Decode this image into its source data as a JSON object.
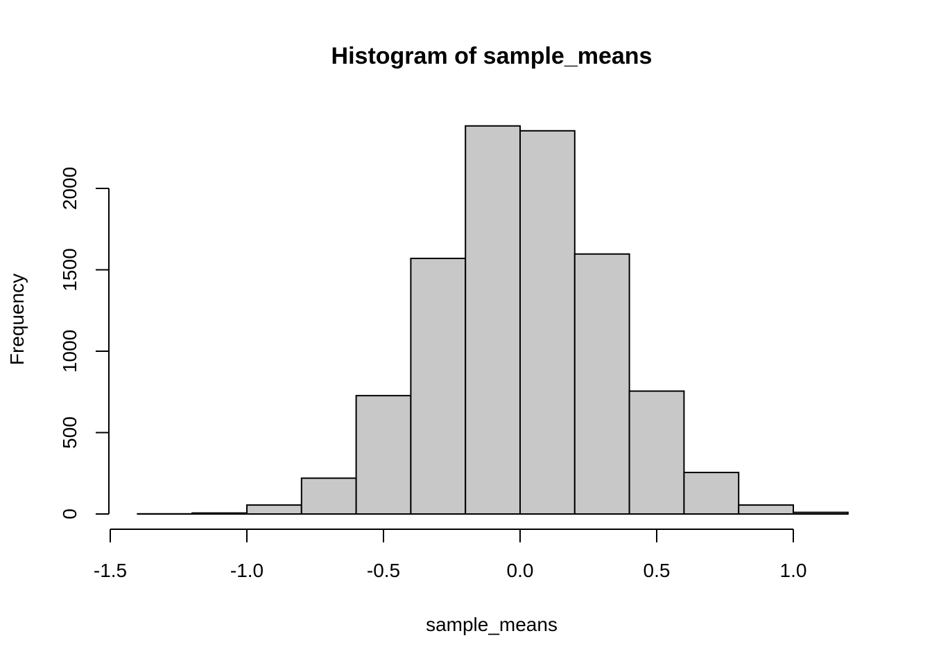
{
  "chart_data": {
    "type": "bar",
    "title": "Histogram of sample_means",
    "xlabel": "sample_means",
    "ylabel": "Frequency",
    "bin_edges": [
      -1.4,
      -1.2,
      -1.0,
      -0.8,
      -0.6,
      -0.4,
      -0.2,
      0.0,
      0.2,
      0.4,
      0.6,
      0.8,
      1.0,
      1.2
    ],
    "values": [
      1,
      6,
      55,
      220,
      727,
      1570,
      2384,
      2354,
      1597,
      755,
      255,
      55,
      10
    ],
    "xlim": [
      -1.5,
      1.2
    ],
    "ylim": [
      0,
      2384
    ],
    "x_ticks": [
      -1.5,
      -1.0,
      -0.5,
      0.0,
      0.5,
      1.0
    ],
    "x_tick_labels": [
      "-1.5",
      "-1.0",
      "-0.5",
      "0.0",
      "0.5",
      "1.0"
    ],
    "y_ticks": [
      0,
      500,
      1000,
      1500,
      2000
    ],
    "y_tick_labels": [
      "0",
      "500",
      "1000",
      "1500",
      "2000"
    ],
    "bar_color": "#c8c8c8",
    "grid": false
  }
}
